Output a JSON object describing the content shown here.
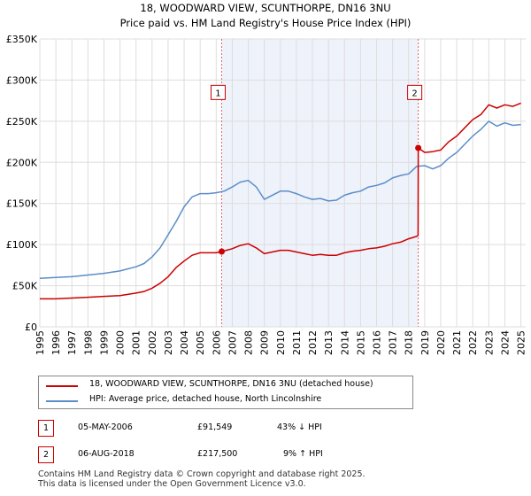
{
  "chart_data": {
    "type": "line",
    "title": "18, WOODWARD VIEW, SCUNTHORPE, DN16 3NU",
    "subtitle": "Price paid vs. HM Land Registry's House Price Index (HPI)",
    "xlabel": "",
    "ylabel": "",
    "xlim": [
      1995,
      2025.3
    ],
    "ylim": [
      0,
      350000
    ],
    "yticks": [
      0,
      50000,
      100000,
      150000,
      200000,
      250000,
      300000,
      350000
    ],
    "ytick_labels": [
      "£0",
      "£50K",
      "£100K",
      "£150K",
      "£200K",
      "£250K",
      "£300K",
      "£350K"
    ],
    "xticks": [
      1995,
      1996,
      1997,
      1998,
      1999,
      2000,
      2001,
      2002,
      2003,
      2004,
      2005,
      2006,
      2007,
      2008,
      2009,
      2010,
      2011,
      2012,
      2013,
      2014,
      2015,
      2016,
      2017,
      2018,
      2019,
      2020,
      2021,
      2022,
      2023,
      2024,
      2025
    ],
    "grid": true,
    "shaded_region": [
      2006.34,
      2018.6
    ],
    "series": [
      {
        "name": "18, WOODWARD VIEW, SCUNTHORPE, DN16 3NU (detached house)",
        "color": "#cc0000",
        "x": [
          1995.0,
          1996.0,
          1997.0,
          1998.0,
          1999.0,
          2000.0,
          2001.0,
          2001.5,
          2002.0,
          2002.5,
          2003.0,
          2003.5,
          2004.0,
          2004.5,
          2005.0,
          2005.5,
          2006.0,
          2006.34,
          2007.0,
          2007.5,
          2008.0,
          2008.5,
          2009.0,
          2009.5,
          2010.0,
          2010.5,
          2011.0,
          2011.5,
          2012.0,
          2012.5,
          2013.0,
          2013.5,
          2014.0,
          2014.5,
          2015.0,
          2015.5,
          2016.0,
          2016.5,
          2017.0,
          2017.5,
          2018.0,
          2018.5,
          2018.59,
          2018.6,
          2019.0,
          2019.5,
          2020.0,
          2020.5,
          2021.0,
          2021.5,
          2022.0,
          2022.5,
          2023.0,
          2023.5,
          2024.0,
          2024.5,
          2025.0
        ],
        "values": [
          34000,
          34000,
          35000,
          36000,
          37000,
          38000,
          41000,
          43000,
          47000,
          53000,
          61000,
          72000,
          80000,
          87000,
          90000,
          90000,
          90000,
          91549,
          95000,
          99000,
          101000,
          96000,
          89000,
          91000,
          93000,
          93000,
          91000,
          89000,
          87000,
          88000,
          87000,
          87000,
          90000,
          92000,
          93000,
          95000,
          96000,
          98000,
          101000,
          103000,
          107000,
          110000,
          111000,
          217500,
          212000,
          213000,
          215000,
          225000,
          232000,
          242000,
          252000,
          258000,
          270000,
          266000,
          270000,
          268000,
          272000
        ]
      },
      {
        "name": "HPI: Average price, detached house, North Lincolnshire",
        "color": "#5b8dc9",
        "x": [
          1995.0,
          1996.0,
          1997.0,
          1998.0,
          1999.0,
          2000.0,
          2001.0,
          2001.5,
          2002.0,
          2002.5,
          2003.0,
          2003.5,
          2004.0,
          2004.5,
          2005.0,
          2005.5,
          2006.0,
          2006.5,
          2007.0,
          2007.5,
          2008.0,
          2008.5,
          2009.0,
          2009.5,
          2010.0,
          2010.5,
          2011.0,
          2011.5,
          2012.0,
          2012.5,
          2013.0,
          2013.5,
          2014.0,
          2014.5,
          2015.0,
          2015.5,
          2016.0,
          2016.5,
          2017.0,
          2017.5,
          2018.0,
          2018.5,
          2019.0,
          2019.5,
          2020.0,
          2020.5,
          2021.0,
          2021.5,
          2022.0,
          2022.5,
          2023.0,
          2023.5,
          2024.0,
          2024.5,
          2025.0
        ],
        "values": [
          59000,
          60000,
          61000,
          63000,
          65000,
          68000,
          73000,
          77000,
          85000,
          96000,
          112000,
          128000,
          146000,
          158000,
          162000,
          162000,
          163000,
          165000,
          170000,
          176000,
          178000,
          170000,
          155000,
          160000,
          165000,
          165000,
          162000,
          158000,
          155000,
          156000,
          153000,
          154000,
          160000,
          163000,
          165000,
          170000,
          172000,
          175000,
          181000,
          184000,
          186000,
          195000,
          196000,
          192000,
          196000,
          205000,
          212000,
          222000,
          232000,
          240000,
          250000,
          244000,
          248000,
          245000,
          246000
        ]
      }
    ],
    "sale_markers": [
      {
        "label": "1",
        "x": 2006.34,
        "y": 91549
      },
      {
        "label": "2",
        "x": 2018.6,
        "y": 217500
      }
    ],
    "annotation_box_y": 285000
  },
  "legend": {
    "sale_label": "18, WOODWARD VIEW, SCUNTHORPE, DN16 3NU (detached house)",
    "hpi_label": "HPI: Average price, detached house, North Lincolnshire",
    "sale_color": "#cc0000",
    "hpi_color": "#5b8dc9"
  },
  "transactions": [
    {
      "num": "1",
      "date": "05-MAY-2006",
      "price": "£91,549",
      "hpi": "43% ↓ HPI"
    },
    {
      "num": "2",
      "date": "06-AUG-2018",
      "price": "£217,500",
      "hpi": "9% ↑ HPI"
    }
  ],
  "footer": {
    "line1": "Contains HM Land Registry data © Crown copyright and database right 2025.",
    "line2": "This data is licensed under the Open Government Licence v3.0."
  }
}
